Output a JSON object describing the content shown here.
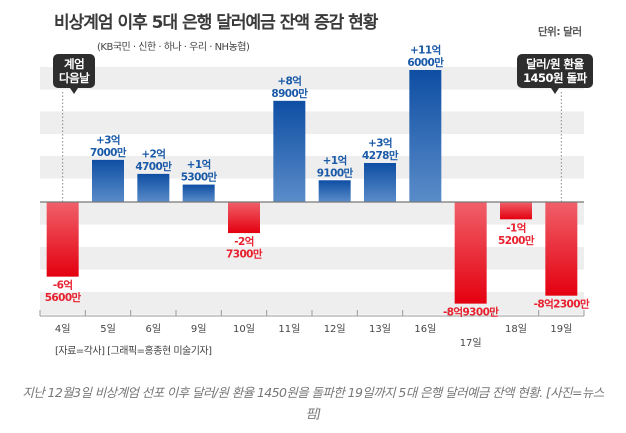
{
  "header": {
    "title": "비상계엄 이후 5대 은행 달러예금 잔액 증감 현황",
    "subtitle": "(KB국민 · 신한 · 하나 · 우리 · NH농협)",
    "unit": "단위: 달러"
  },
  "callouts": {
    "left_line1": "계엄",
    "left_line2": "다음날",
    "right_line1": "달러/원 환율",
    "right_line2": "1450원 돌파"
  },
  "source": "[자료=각사] [그래픽=홍종현 미술기자]",
  "caption": "지난 12월3일 비상계엄 선포 이후 달러/원 환율 1450원을 돌파한 19일까지 5대 은행 달러예금 잔액 현황. [사진=뉴스핌]",
  "colors": {
    "positive": "#1a5aa8",
    "negative": "#e8212f",
    "band": "#eeeeee",
    "callout": "#2d2d2d"
  },
  "chart_data": {
    "type": "bar",
    "title": "비상계엄 이후 5대 은행 달러예금 잔액 증감 현황",
    "xlabel": "",
    "ylabel": "단위: 달러 (억)",
    "ylim": [
      -9.5,
      12
    ],
    "grid": true,
    "legend": "none",
    "categories": [
      "4일",
      "5일",
      "6일",
      "9일",
      "10일",
      "11일",
      "12일",
      "13일",
      "16일",
      "17일",
      "18일",
      "19일"
    ],
    "values": [
      -6.56,
      3.7,
      2.47,
      1.53,
      -2.73,
      8.89,
      1.91,
      3.4278,
      11.6,
      -8.93,
      -1.52,
      -8.23
    ],
    "labels": [
      [
        "-6억",
        "5600만"
      ],
      [
        "+3억",
        "7000만"
      ],
      [
        "+2억",
        "4700만"
      ],
      [
        "+1억",
        "5300만"
      ],
      [
        "-2억",
        "7300만"
      ],
      [
        "+8억",
        "8900만"
      ],
      [
        "+1억",
        "9100만"
      ],
      [
        "+3억",
        "4278만"
      ],
      [
        "+11억",
        "6000만"
      ],
      [
        "-8억9300만"
      ],
      [
        "-1억",
        "5200만"
      ],
      [
        "-8억2300만"
      ]
    ],
    "annotations": [
      "계엄 다음날 (4일)",
      "달러/원 환율 1450원 돌파 (19일)"
    ]
  }
}
